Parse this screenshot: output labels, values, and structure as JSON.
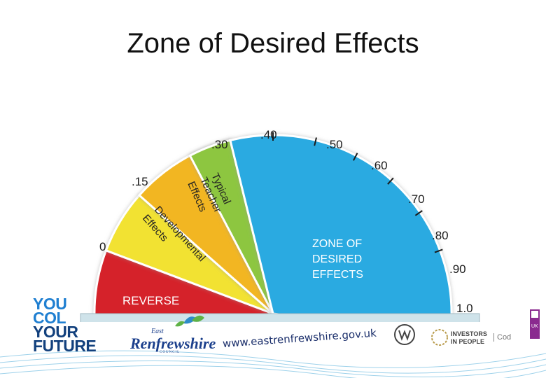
{
  "slide": {
    "title": "Zone of Desired Effects"
  },
  "chart_data": {
    "type": "gauge",
    "scale": [
      0,
      0.15,
      0.3,
      0.4,
      0.5,
      0.6,
      0.7,
      0.8,
      0.9,
      1.0
    ],
    "tick_labels": [
      "0",
      ".15",
      ".30",
      ".40",
      ".50",
      ".60",
      ".70",
      ".80",
      ".90",
      "1.0"
    ],
    "segments": [
      {
        "label": "REVERSE",
        "from": -0.2,
        "to": 0,
        "color": "#d5232a"
      },
      {
        "label": "Developmental Effects",
        "from": 0,
        "to": 0.15,
        "color": "#f2e232"
      },
      {
        "label": "Typical Teacher Effects",
        "from": 0.15,
        "to": 0.4,
        "color": "#f2b622"
      },
      {
        "label": "",
        "from": 0.3,
        "to": 0.4,
        "color": "#8dc63f"
      },
      {
        "label": "ZONE OF DESIRED EFFECTS",
        "from": 0.4,
        "to": 1.2,
        "color": "#29aae1"
      }
    ]
  },
  "footer": {
    "you_lines": [
      "YOU",
      "COL",
      "YOUR",
      "FUTURE"
    ],
    "council_east": "East",
    "council_name": "Renfrewshire",
    "council_sub": "COUNCIL",
    "website": "www.eastrenfrewshire.gov.uk",
    "iip_line1": "INVESTORS",
    "iip_line2": "IN PEOPLE",
    "cod": "Cod",
    "badge": "UK"
  }
}
